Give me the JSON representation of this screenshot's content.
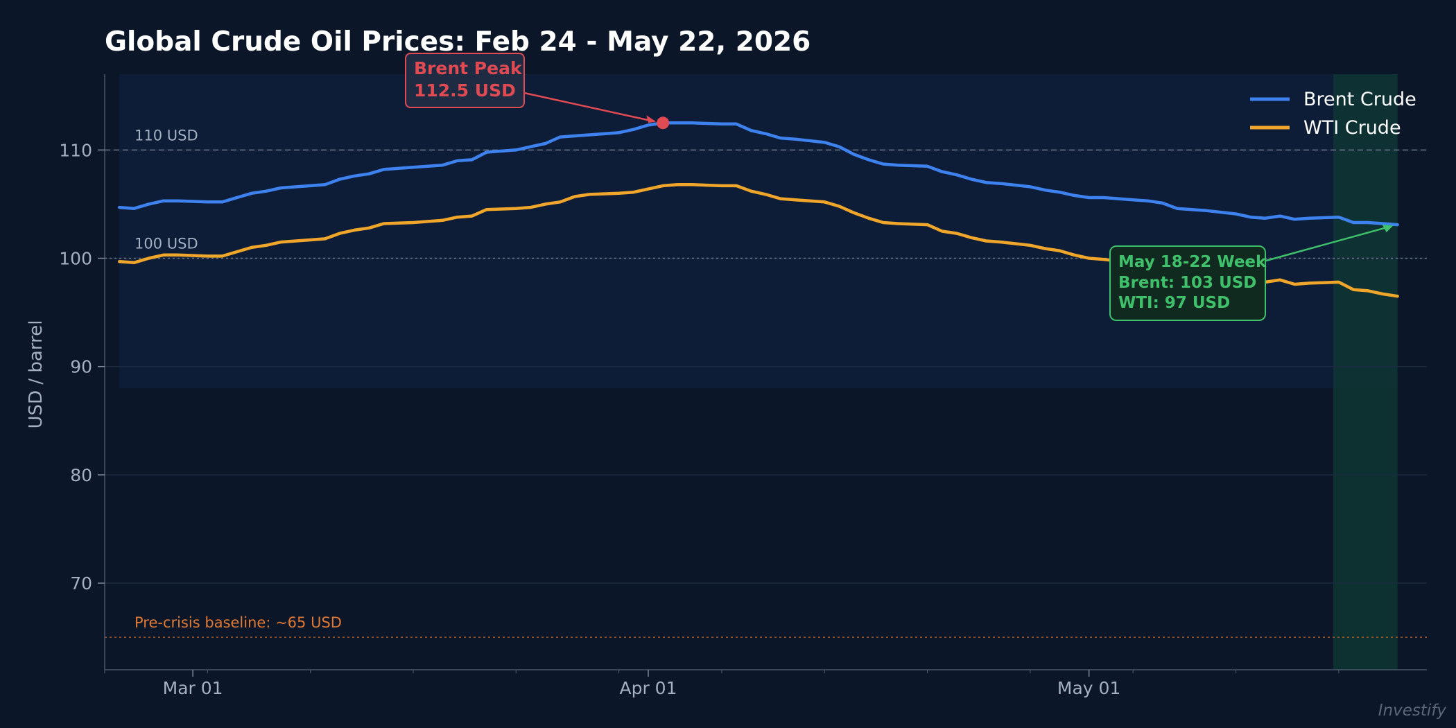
{
  "colors": {
    "background": "#0b1628",
    "brent": "#3d82ee",
    "wti": "#f0a62a",
    "peak": "#e04a53",
    "highlight": "#3fc06a",
    "baseline": "#e07a35"
  },
  "chart_data": {
    "type": "line",
    "title": "Global Crude Oil Prices: Feb 24 - May 22, 2026",
    "xlabel": "",
    "ylabel": "USD / barrel",
    "ylim": [
      62,
      117
    ],
    "xlim": [
      "2026-02-23",
      "2026-05-24"
    ],
    "x_ticks": [
      {
        "date": "2026-03-01",
        "label": "Mar 01"
      },
      {
        "date": "2026-04-01",
        "label": "Apr 01"
      },
      {
        "date": "2026-05-01",
        "label": "May 01"
      }
    ],
    "y_ticks": [
      70,
      80,
      90,
      100,
      110
    ],
    "grid": true,
    "legend_position": "top-right",
    "x": [
      "2026-02-24",
      "2026-02-25",
      "2026-02-26",
      "2026-02-27",
      "2026-02-28",
      "2026-03-02",
      "2026-03-03",
      "2026-03-04",
      "2026-03-05",
      "2026-03-06",
      "2026-03-07",
      "2026-03-09",
      "2026-03-10",
      "2026-03-11",
      "2026-03-12",
      "2026-03-13",
      "2026-03-14",
      "2026-03-16",
      "2026-03-17",
      "2026-03-18",
      "2026-03-19",
      "2026-03-20",
      "2026-03-21",
      "2026-03-23",
      "2026-03-24",
      "2026-03-25",
      "2026-03-26",
      "2026-03-27",
      "2026-03-28",
      "2026-03-30",
      "2026-03-31",
      "2026-04-01",
      "2026-04-02",
      "2026-04-03",
      "2026-04-04",
      "2026-04-06",
      "2026-04-07",
      "2026-04-08",
      "2026-04-09",
      "2026-04-10",
      "2026-04-11",
      "2026-04-13",
      "2026-04-14",
      "2026-04-15",
      "2026-04-16",
      "2026-04-17",
      "2026-04-18",
      "2026-04-20",
      "2026-04-21",
      "2026-04-22",
      "2026-04-23",
      "2026-04-24",
      "2026-04-25",
      "2026-04-27",
      "2026-04-28",
      "2026-04-29",
      "2026-04-30",
      "2026-05-01",
      "2026-05-02",
      "2026-05-04",
      "2026-05-05",
      "2026-05-06",
      "2026-05-07",
      "2026-05-08",
      "2026-05-09",
      "2026-05-11",
      "2026-05-12",
      "2026-05-13",
      "2026-05-14",
      "2026-05-15",
      "2026-05-16",
      "2026-05-18",
      "2026-05-19",
      "2026-05-20",
      "2026-05-21",
      "2026-05-22"
    ],
    "series": [
      {
        "name": "Brent Crude",
        "color": "#3d82ee",
        "values": [
          104.7,
          104.6,
          105.0,
          105.3,
          105.3,
          105.2,
          105.2,
          105.6,
          106.0,
          106.2,
          106.5,
          106.7,
          106.8,
          107.3,
          107.6,
          107.8,
          108.2,
          108.4,
          108.5,
          108.6,
          109.0,
          109.1,
          109.8,
          110.0,
          110.3,
          110.6,
          111.2,
          111.3,
          111.4,
          111.6,
          111.9,
          112.3,
          112.5,
          112.5,
          112.5,
          112.4,
          112.4,
          111.8,
          111.5,
          111.1,
          111.0,
          110.7,
          110.3,
          109.6,
          109.1,
          108.7,
          108.6,
          108.5,
          108.0,
          107.7,
          107.3,
          107.0,
          106.9,
          106.6,
          106.3,
          106.1,
          105.8,
          105.6,
          105.6,
          105.4,
          105.3,
          105.1,
          104.6,
          104.5,
          104.4,
          104.1,
          103.8,
          103.7,
          103.9,
          103.6,
          103.7,
          103.8,
          103.3,
          103.3,
          103.2,
          103.1
        ]
      },
      {
        "name": "WTI Crude",
        "color": "#f0a62a",
        "values": [
          99.7,
          99.6,
          100.0,
          100.3,
          100.3,
          100.2,
          100.2,
          100.6,
          101.0,
          101.2,
          101.5,
          101.7,
          101.8,
          102.3,
          102.6,
          102.8,
          103.2,
          103.3,
          103.4,
          103.5,
          103.8,
          103.9,
          104.5,
          104.6,
          104.7,
          105.0,
          105.2,
          105.7,
          105.9,
          106.0,
          106.1,
          106.4,
          106.7,
          106.8,
          106.8,
          106.7,
          106.7,
          106.2,
          105.9,
          105.5,
          105.4,
          105.2,
          104.8,
          104.2,
          103.7,
          103.3,
          103.2,
          103.1,
          102.5,
          102.3,
          101.9,
          101.6,
          101.5,
          101.2,
          100.9,
          100.7,
          100.3,
          100.0,
          99.9,
          99.6,
          99.4,
          99.2,
          98.8,
          98.6,
          98.5,
          98.2,
          97.9,
          97.8,
          98.0,
          97.6,
          97.7,
          97.8,
          97.1,
          97.0,
          96.7,
          96.5
        ]
      }
    ],
    "reference_lines": [
      {
        "value": 110,
        "label": "110 USD",
        "style": "dashed"
      },
      {
        "value": 100,
        "label": "100 USD",
        "style": "dotted"
      },
      {
        "value": 65,
        "label": "Pre-crisis baseline: ~65 USD",
        "style": "dotted"
      }
    ],
    "shaded_band": {
      "y_from": 88,
      "y_to": 117,
      "x_from": "2026-02-24",
      "x_to": "2026-05-22"
    },
    "highlight_span": {
      "from": "2026-05-18",
      "to": "2026-05-22"
    },
    "peak": {
      "date": "2026-04-02",
      "value": 112.5,
      "lines": [
        "Brent Peak",
        "112.5 USD"
      ]
    },
    "week_annotation": {
      "date": "2026-05-22",
      "value": 103.1,
      "lines": [
        "May 18-22 Week",
        "Brent: 103 USD",
        "WTI: 97 USD"
      ]
    },
    "watermark": "Investify"
  }
}
